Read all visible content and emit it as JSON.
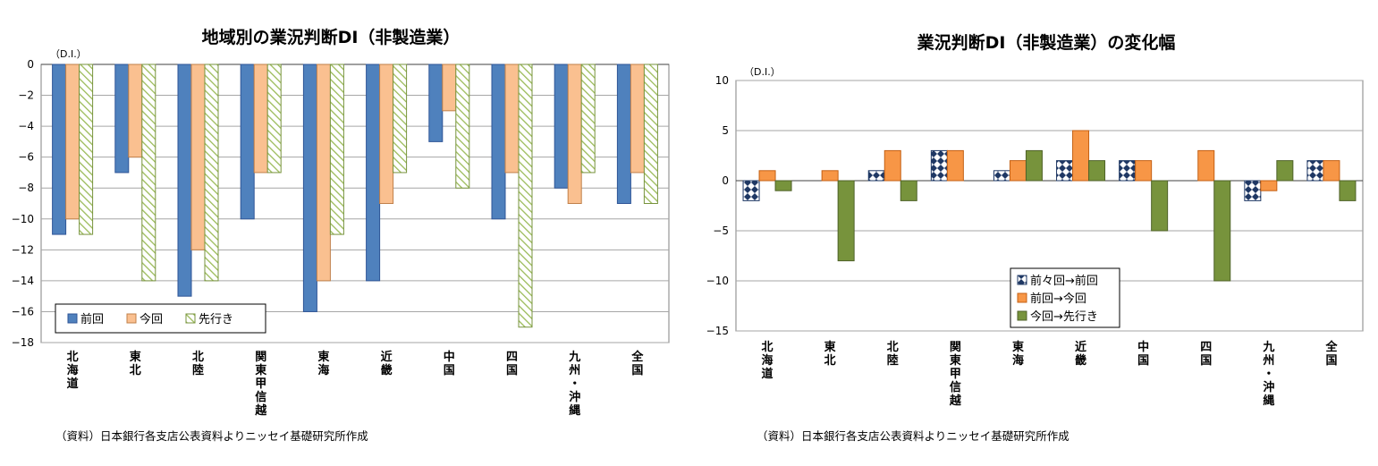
{
  "colors": {
    "blue": "#4F81BD",
    "orange": "#F79646",
    "orange_light": "#FAC090",
    "green": "#77933C",
    "navy": "#1F3864",
    "grid": "#A6A6A6"
  },
  "chart_data": [
    {
      "type": "bar",
      "title": "地域別の業況判断DI（非製造業）",
      "unit_label": "（D.I.）",
      "source_note": "（資料）日本銀行各支店公表資料よりニッセイ基礎研究所作成",
      "categories": [
        "北海道",
        "東北",
        "北陸",
        "関東甲信越",
        "東海",
        "近畿",
        "中国",
        "四国",
        "九州・沖縄",
        "全国"
      ],
      "series": [
        {
          "name": "前回",
          "values": [
            -11,
            -7,
            -15,
            -10,
            -16,
            -14,
            -5,
            -10,
            -8,
            -9
          ]
        },
        {
          "name": "今回",
          "values": [
            -10,
            -6,
            -12,
            -7,
            -14,
            -9,
            -3,
            -7,
            -9,
            -7
          ]
        },
        {
          "name": "先行き",
          "values": [
            -11,
            -14,
            -14,
            -7,
            -11,
            -7,
            -8,
            -17,
            -7,
            -9
          ]
        }
      ],
      "ylim": [
        -18,
        0
      ],
      "yticks": [
        "0",
        "−2",
        "−4",
        "−6",
        "−8",
        "−10",
        "−12",
        "−14",
        "−16",
        "−18"
      ],
      "grid": true,
      "legend_position": "bottom-left"
    },
    {
      "type": "bar",
      "title": "業況判断DI（非製造業）の変化幅",
      "unit_label": "（D.I.）",
      "source_note": "（資料）日本銀行各支店公表資料よりニッセイ基礎研究所作成",
      "categories": [
        "北海道",
        "東北",
        "北陸",
        "関東甲信越",
        "東海",
        "近畿",
        "中国",
        "四国",
        "九州・沖縄",
        "全国"
      ],
      "series": [
        {
          "name": "前々回→前回",
          "values": [
            -2,
            0,
            1,
            3,
            1,
            2,
            2,
            0,
            -2,
            2
          ]
        },
        {
          "name": "前回→今回",
          "values": [
            1,
            1,
            3,
            3,
            2,
            5,
            2,
            3,
            -1,
            2
          ]
        },
        {
          "name": "今回→先行き",
          "values": [
            -1,
            -8,
            -2,
            0,
            3,
            2,
            -5,
            -10,
            2,
            -2
          ]
        }
      ],
      "ylim": [
        -15,
        10
      ],
      "yticks": [
        "10",
        "5",
        "0",
        "−5",
        "−10",
        "−15"
      ],
      "grid": true,
      "legend_position": "bottom-center"
    }
  ]
}
